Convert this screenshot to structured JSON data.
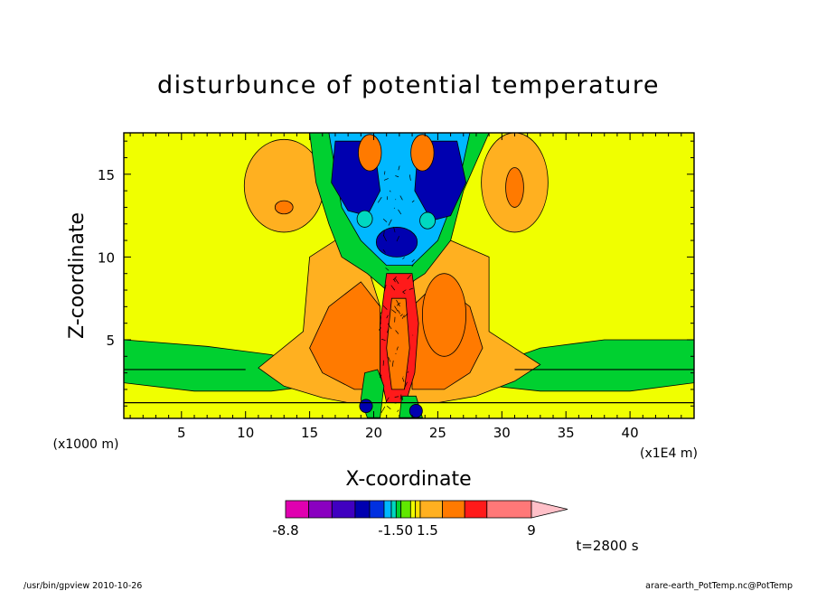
{
  "chart_data": {
    "type": "heatmap",
    "title": "disturbunce of potential temperature",
    "xlabel": "X-coordinate",
    "ylabel": "Z-coordinate",
    "x_unit": "(x1E4 m)",
    "y_unit": "(x1000 m)",
    "xlim": [
      0.5,
      45
    ],
    "ylim": [
      0.25,
      17.5
    ],
    "x_ticks": [
      5,
      10,
      15,
      20,
      25,
      30,
      35,
      40
    ],
    "y_ticks": [
      5,
      10,
      15
    ],
    "colorbar": {
      "labels": [
        "-8.8",
        "-1.50",
        "1.5",
        "9"
      ],
      "label_positions": [
        -8.8,
        -1.5,
        1.5,
        9
      ],
      "levels": [
        -8.8,
        -7.2,
        -5.6,
        -4.0,
        -3.0,
        -2.0,
        -1.5,
        -1.0,
        -0.5,
        0.5,
        1.0,
        1.5,
        3.0,
        4.5,
        6.0,
        9.0
      ],
      "colors": [
        "#e000b0",
        "#8a00c0",
        "#4000c0",
        "#0000b0",
        "#0030e0",
        "#00b8ff",
        "#00d8c0",
        "#00d030",
        "#60e800",
        "#f0ff00",
        "#ffe000",
        "#ffb020",
        "#ff7a00",
        "#ff1a1a",
        "#ff7878"
      ],
      "over_color": "#ffc0c8"
    },
    "annotation": "t=2800 s"
  },
  "footer": {
    "left": "/usr/bin/gpview   2010-10-26",
    "right": "arare-earth_PotTemp.nc@PotTemp"
  }
}
